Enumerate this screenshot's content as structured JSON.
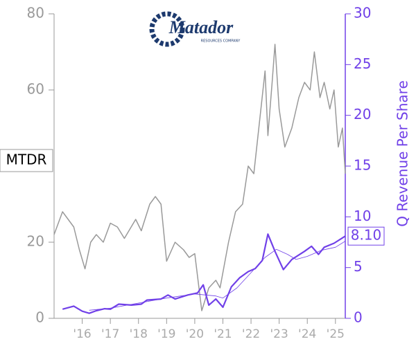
{
  "chart_data": {
    "type": "line",
    "ticker": "MTDR",
    "logo_text": "Matador",
    "logo_subtext": "RESOURCES COMPANY",
    "y2_label": "Q Revenue Per Share",
    "xlim": [
      2015,
      2025.35
    ],
    "xticks": [
      {
        "value": 2016,
        "label": "'16"
      },
      {
        "value": 2017,
        "label": "'17"
      },
      {
        "value": 2018,
        "label": "'18"
      },
      {
        "value": 2019,
        "label": "'19"
      },
      {
        "value": 2020,
        "label": "'20"
      },
      {
        "value": 2021,
        "label": "'21"
      },
      {
        "value": 2022,
        "label": "'22"
      },
      {
        "value": 2023,
        "label": "'23"
      },
      {
        "value": 2024,
        "label": "'24"
      },
      {
        "value": 2025,
        "label": "'25"
      }
    ],
    "ylim": [
      0,
      80
    ],
    "yticks": [
      0,
      20,
      60,
      80
    ],
    "y2lim": [
      0,
      30
    ],
    "y2ticks": [
      0,
      5,
      10,
      15,
      20,
      25,
      30
    ],
    "series": [
      {
        "color": "#999999",
        "width": 1.5,
        "x": [
          2015.0,
          2015.3,
          2015.5,
          2015.7,
          2015.9,
          2016.1,
          2016.3,
          2016.5,
          2016.75,
          2017.0,
          2017.25,
          2017.5,
          2017.9,
          2018.1,
          2018.4,
          2018.6,
          2018.8,
          2019.0,
          2019.3,
          2019.6,
          2019.8,
          2020.0,
          2020.25,
          2020.5,
          2020.75,
          2020.9,
          2021.2,
          2021.45,
          2021.7,
          2021.9,
          2022.1,
          2022.35,
          2022.5,
          2022.6,
          2022.75,
          2022.85,
          2023.0,
          2023.2,
          2023.45,
          2023.7,
          2023.9,
          2024.1,
          2024.25,
          2024.45,
          2024.6,
          2024.8,
          2024.95,
          2025.1,
          2025.25,
          2025.35
        ],
        "values": [
          22,
          28,
          26,
          24,
          18,
          13,
          20,
          22,
          20,
          25,
          24,
          21,
          26,
          23,
          30,
          32,
          30,
          15,
          20,
          18,
          16,
          17,
          2,
          8,
          10,
          8,
          20,
          28,
          30,
          40,
          38,
          55,
          65,
          48,
          62,
          72,
          55,
          45,
          50,
          58,
          62,
          60,
          70,
          58,
          62,
          55,
          60,
          45,
          50,
          38
        ]
      },
      {
        "color": "#7040e8",
        "width": 2.2,
        "axis": "y2",
        "x": [
          2015.3,
          2015.7,
          2016.0,
          2016.25,
          2016.5,
          2016.8,
          2017.0,
          2017.3,
          2017.75,
          2018.1,
          2018.3,
          2018.8,
          2019.05,
          2019.3,
          2019.75,
          2020.1,
          2020.3,
          2020.5,
          2020.75,
          2021.0,
          2021.3,
          2021.6,
          2021.9,
          2022.15,
          2022.4,
          2022.6,
          2022.85,
          2023.15,
          2023.45,
          2023.9,
          2024.15,
          2024.4,
          2024.6,
          2024.95,
          2025.35
        ],
        "values": [
          0.9,
          1.2,
          0.7,
          0.5,
          0.75,
          0.95,
          0.9,
          1.4,
          1.3,
          1.4,
          1.8,
          1.9,
          2.3,
          1.9,
          2.3,
          2.5,
          3.3,
          1.3,
          1.9,
          1.1,
          3.1,
          4.0,
          4.6,
          4.9,
          5.7,
          8.3,
          6.6,
          4.8,
          5.8,
          6.6,
          7.1,
          6.3,
          7.0,
          7.4,
          8.1
        ],
        "value_labels": [
          null,
          null,
          null,
          null,
          null,
          null,
          null,
          null,
          null,
          null,
          null,
          null,
          null,
          null,
          null,
          null,
          null,
          null,
          null,
          null,
          null,
          null,
          null,
          null,
          null,
          null,
          null,
          null,
          null,
          null,
          null,
          null,
          null,
          null,
          "8.10"
        ]
      },
      {
        "color": "#7040e8",
        "width": 0.8,
        "axis": "y2",
        "x": [
          2016.25,
          2017.0,
          2018.0,
          2019.0,
          2020.0,
          2020.75,
          2021.0,
          2021.5,
          2022.0,
          2022.5,
          2022.9,
          2023.3,
          2023.6,
          2024.0,
          2024.5,
          2025.0,
          2025.35
        ],
        "values": [
          0.8,
          1.0,
          1.5,
          2.0,
          2.4,
          2.2,
          2.0,
          3.0,
          4.5,
          6.0,
          6.8,
          6.3,
          5.8,
          6.1,
          6.7,
          7.0,
          7.6
        ]
      }
    ]
  }
}
